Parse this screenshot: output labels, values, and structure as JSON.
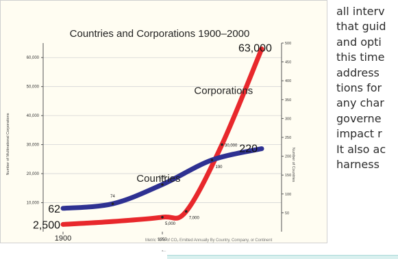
{
  "chart_data": {
    "type": "line",
    "title": "Countries and Corporations 1900–2000",
    "x": [
      1900,
      1925,
      1950,
      1975,
      2000
    ],
    "x_tick_labels": [
      "1900",
      "1950"
    ],
    "left_axis": {
      "label": "Number of Multinational Corporations",
      "range": [
        0,
        65000
      ],
      "ticks": [
        "10,000",
        "20,000",
        "30,000",
        "40,000",
        "50,000",
        "60,000"
      ]
    },
    "right_axis": {
      "label": "Number of Countries",
      "range": [
        0,
        500
      ],
      "ticks": [
        "50",
        "100",
        "150",
        "200",
        "250",
        "300",
        "350",
        "400",
        "450",
        "500"
      ]
    },
    "grid": true,
    "series": [
      {
        "name": "Corporations",
        "axis": "left",
        "color": "#e8282c",
        "values": [
          2500,
          3500,
          5000,
          7000,
          30000,
          63000
        ],
        "x_values": [
          1900,
          1925,
          1950,
          1962,
          1980,
          2000
        ],
        "labels": [
          "2,500",
          "5,000",
          "7,000",
          "30,000",
          "63,000"
        ]
      },
      {
        "name": "Countries",
        "axis": "right",
        "color": "#2e3192",
        "values": [
          62,
          74,
          125,
          190,
          220
        ],
        "x_values": [
          1900,
          1925,
          1950,
          1975,
          2000
        ],
        "labels": [
          "62",
          "74",
          "125",
          "190",
          "220"
        ]
      }
    ]
  },
  "side_text": [
    "all interv",
    "that guid",
    "and opti",
    "this time",
    "address",
    "tions for",
    "any char",
    "governe",
    "impact r",
    "It also ac",
    "harness"
  ],
  "caption": "Metric Tons of CO₂ Emitted Annually By Country, Company, or Continent",
  "caption_mark": "a—"
}
